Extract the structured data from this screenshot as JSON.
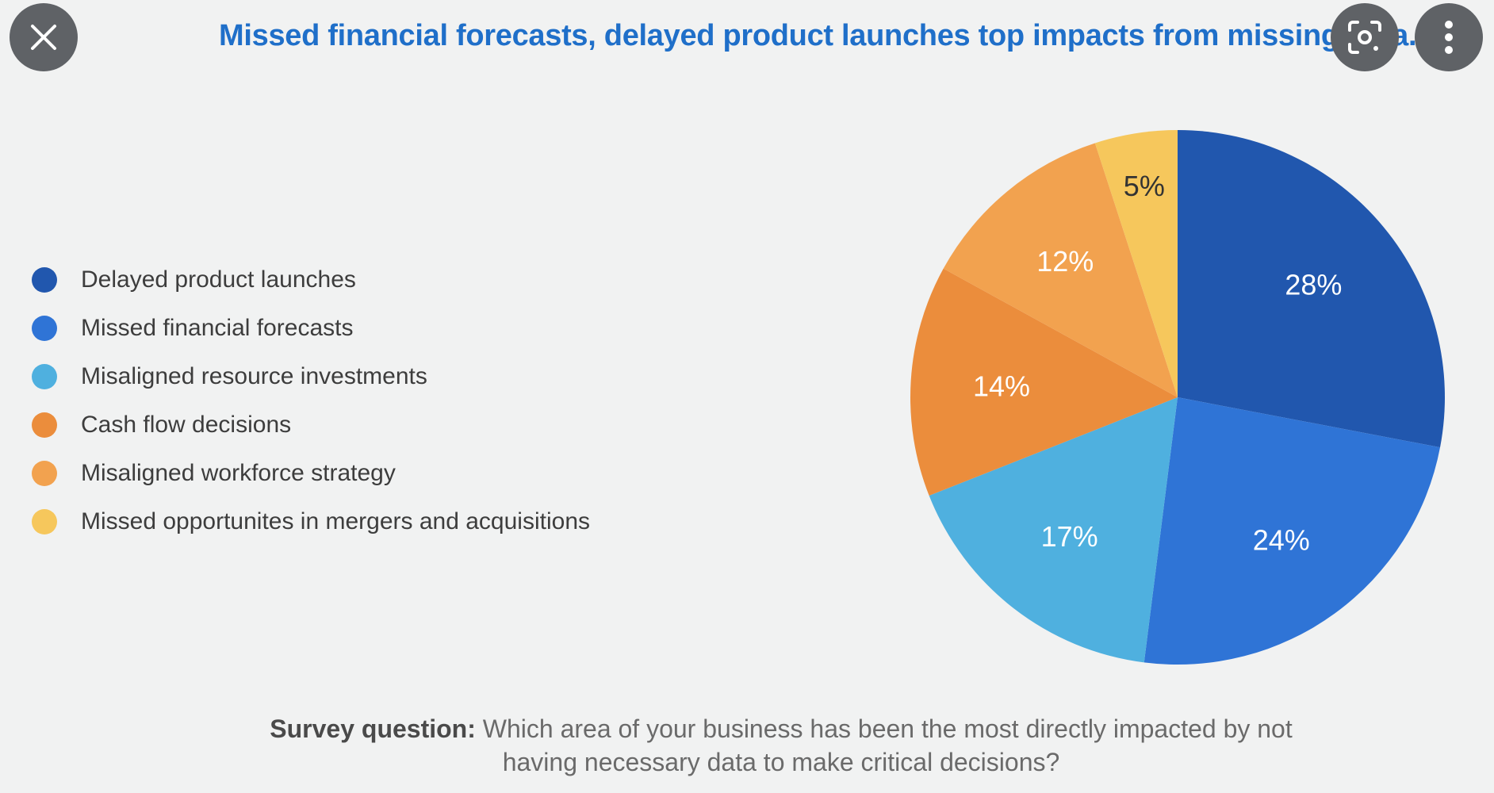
{
  "header": {
    "title": "Missed financial forecasts, delayed product launches top impacts from missing data."
  },
  "controls": {
    "close_icon": "close-icon",
    "lens_icon": "lens-search-icon",
    "more_icon": "more-vertical-icon"
  },
  "chart_data": {
    "type": "pie",
    "title": "Missed financial forecasts, delayed product launches top impacts from missing data.",
    "legend_placement": "left",
    "categories": [
      "Delayed product launches",
      "Missed financial forecasts",
      "Misaligned resource investments",
      "Cash flow decisions",
      "Misaligned workforce strategy",
      "Missed opportunites in mergers and acquisitions"
    ],
    "values": [
      28,
      24,
      17,
      14,
      12,
      5
    ],
    "value_labels": [
      "28%",
      "24%",
      "17%",
      "14%",
      "12%",
      "5%"
    ],
    "colors": [
      "#2157ae",
      "#2f74d6",
      "#4fb0df",
      "#eb8d3c",
      "#f2a24f",
      "#f6c75c"
    ],
    "label_colors": [
      "#ffffff",
      "#ffffff",
      "#ffffff",
      "#ffffff",
      "#ffffff",
      "#333333"
    ]
  },
  "footer": {
    "question_label": "Survey question:",
    "question_text": " Which area of your business has been the most directly impacted by not having necessary data to make critical decisions?"
  }
}
